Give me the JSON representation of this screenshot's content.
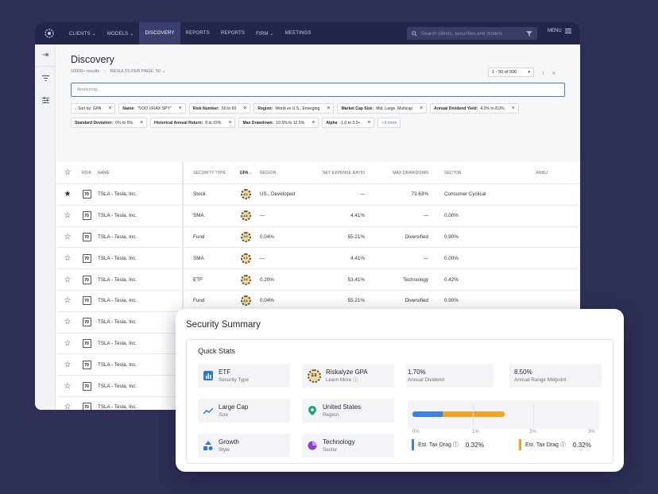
{
  "nav": {
    "items": [
      "CLIENTS ⌄",
      "MODELS ⌄",
      "DISCOVERY",
      "REPORTS",
      "REPORTS",
      "FIRM ⌄",
      "MEETINGS"
    ],
    "search_placeholder": "Search clients, securities and models",
    "menu_label": "MENU"
  },
  "page": {
    "title": "Discovery",
    "results": "10000+ results",
    "per_page": "RESULTS PER PAGE: 50 ⌄",
    "pager": "1 - 50 of 500",
    "analyzing": "Analyzing..."
  },
  "filters": {
    "row1": [
      {
        "key": "",
        "val": "↓ Sort by: GPA"
      },
      {
        "key": "Name:",
        "val": "\"VOO VFIAX SPY\""
      },
      {
        "key": "Risk Number:",
        "val": "50 to 60"
      },
      {
        "key": "Region:",
        "val": "World ex U.S., Emerging"
      },
      {
        "key": "Market Cap Size:",
        "val": "Mid, Large, Multicap"
      },
      {
        "key": "Annual Dividend Yield:",
        "val": "4.0% to 8.0%"
      }
    ],
    "row2": [
      {
        "key": "Standard Deviation:",
        "val": "0% to 5%"
      },
      {
        "key": "Historical Annual Return:",
        "val": "8 to 15%"
      },
      {
        "key": "Max Drawdown:",
        "val": "10.5% to 12.5%"
      },
      {
        "key": "Alpha",
        "val": "-1.0 to 3.0+"
      }
    ],
    "more": "+3 more"
  },
  "table": {
    "headers": {
      "risk": "RISK",
      "name": "NAME",
      "type": "SECURITY TYPE",
      "gpa": "GPA ↓",
      "region": "REGION",
      "exp": "NET EXPENSE RATIO",
      "dd": "MAX DRAWDOWN",
      "sector": "SECTOR",
      "ann": "ANNU"
    },
    "rows": [
      {
        "starred": true,
        "risk": "70",
        "name": "TSLA - Tesla, Inc.",
        "type": "Stock",
        "gpa": "3.6",
        "region": "US., Developed",
        "exp": "—",
        "dd": "73.63%",
        "sector": "Consumer Cyclical"
      },
      {
        "starred": false,
        "risk": "70",
        "name": "TSLA - Tesla, Inc.",
        "type": "SMA",
        "gpa": "4.3",
        "region": "—",
        "exp": "4.41%",
        "dd": "—",
        "sector": "0.00%"
      },
      {
        "starred": false,
        "risk": "70",
        "name": "TSLA - Tesla, Inc.",
        "type": "Fund",
        "gpa": "4.3",
        "region": "0.04%",
        "exp": "55.21%",
        "dd": "Diversified",
        "sector": "0.90%"
      },
      {
        "starred": false,
        "risk": "70",
        "name": "TSLA - Tesla, Inc.",
        "type": "SMA",
        "gpa": "4.3",
        "region": "—",
        "exp": "4.41%",
        "dd": "—",
        "sector": "0.00%"
      },
      {
        "starred": false,
        "risk": "70",
        "name": "TSLA - Tesla, Inc.",
        "type": "ETF",
        "gpa": "4.3",
        "region": "0.20%",
        "exp": "53.41%",
        "dd": "Technology",
        "sector": "0.42%"
      },
      {
        "starred": false,
        "risk": "70",
        "name": "TSLA - Tesla, Inc.",
        "type": "Fund",
        "gpa": "4.3",
        "region": "0.04%",
        "exp": "55.21%",
        "dd": "Diversified",
        "sector": "0.90%"
      },
      {
        "starred": false,
        "risk": "70",
        "name": "TSLA - Tesla, Inc.",
        "type": "SMA",
        "gpa": "4.3",
        "region": "—",
        "exp": "4.41%",
        "dd": "—",
        "sector": "0.00%"
      },
      {
        "starred": false,
        "risk": "70",
        "name": "TSLA - Tesla, Inc.",
        "type": "",
        "gpa": "",
        "region": "",
        "exp": "",
        "dd": "",
        "sector": ""
      },
      {
        "starred": false,
        "risk": "70",
        "name": "TSLA - Tesla, Inc.",
        "type": "",
        "gpa": "",
        "region": "",
        "exp": "",
        "dd": "",
        "sector": ""
      },
      {
        "starred": false,
        "risk": "70",
        "name": "TSLA - Tesla, Inc.",
        "type": "",
        "gpa": "",
        "region": "",
        "exp": "",
        "dd": "",
        "sector": ""
      },
      {
        "starred": false,
        "risk": "70",
        "name": "TSLA - Tesla, Inc.",
        "type": "",
        "gpa": "",
        "region": "",
        "exp": "",
        "dd": "",
        "sector": ""
      },
      {
        "starred": true,
        "risk": "70",
        "name": "TSLA - Tesla, Inc.",
        "type": "",
        "gpa": "",
        "region": "",
        "exp": "",
        "dd": "",
        "sector": ""
      }
    ]
  },
  "summary": {
    "title": "Security Summary",
    "quick_title": "Quick Stats",
    "etf": {
      "label": "ETF",
      "sub": "Security Type"
    },
    "gpa": {
      "label": "Riskalyze GPA",
      "sub": "Learn More ⓘ",
      "score": "3.6"
    },
    "dividend": {
      "label": "1.70%",
      "sub": "Annual Dividend"
    },
    "range": {
      "label": "8.50%",
      "sub": "Annual Range Midpoint"
    },
    "cap": {
      "label": "Large Cap",
      "sub": "Size"
    },
    "region": {
      "label": "United States",
      "sub": "Region"
    },
    "style": {
      "label": "Growth",
      "sub": "Style"
    },
    "sector": {
      "label": "Technology",
      "sub": "Sector"
    },
    "axis": [
      "0%",
      "1%",
      "2%",
      "3%"
    ],
    "drag1": {
      "label": "Est. Tax Drag ⓘ",
      "value": "0.32%"
    },
    "drag2": {
      "label": "Est. Tax Drag ⓘ",
      "value": "0.32%"
    },
    "colors": {
      "blue": "#3d82e0",
      "orange": "#f3a41f",
      "nav": "#23264a",
      "background": "#2d2f56"
    }
  }
}
